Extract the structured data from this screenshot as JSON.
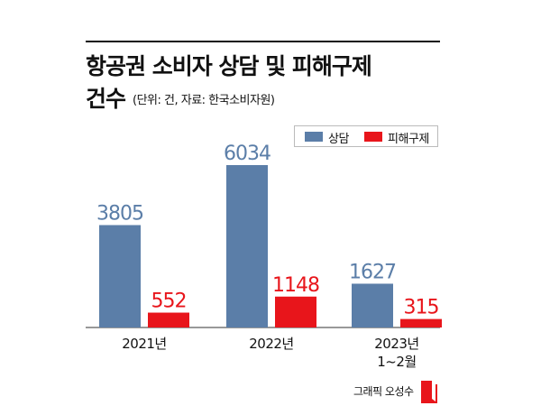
{
  "chart_data": {
    "type": "bar",
    "title": "항공권 소비자 상담 및 피해구제",
    "title_line2": "건수",
    "subtitle": "(단위: 건, 자료: 한국소비자원)",
    "categories": [
      "2021년",
      "2022년",
      "2023년\n1~2월"
    ],
    "series": [
      {
        "name": "상담",
        "values": [
          3805,
          6034,
          1627
        ],
        "color": "#5b7ea8",
        "label_color": "#5b7ea8"
      },
      {
        "name": "피해구제",
        "values": [
          552,
          1148,
          315
        ],
        "color": "#e8151b",
        "label_color": "#e8151b"
      }
    ],
    "ylim": [
      0,
      6034
    ],
    "grid": false,
    "legend": "top-right"
  },
  "credit": "그래픽 오성수"
}
